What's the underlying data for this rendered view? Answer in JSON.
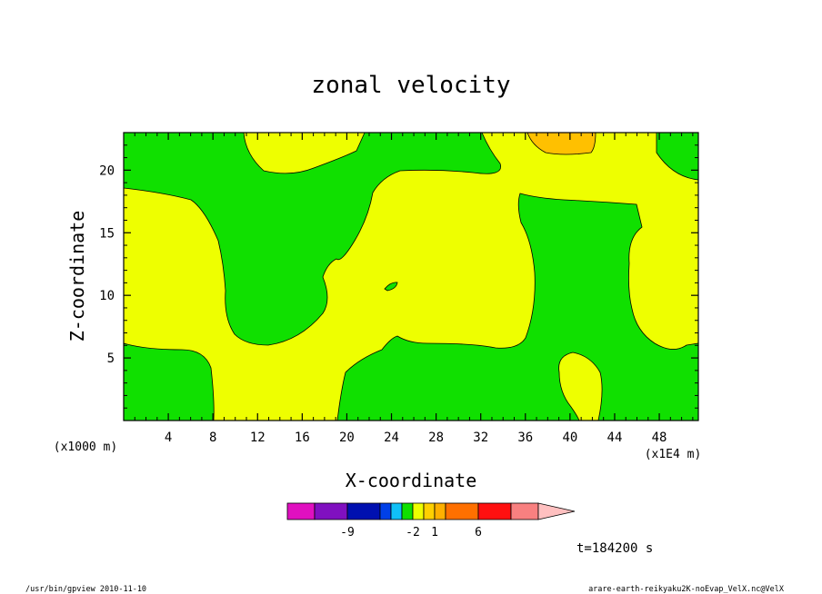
{
  "chart_data": {
    "type": "contour",
    "title": "zonal velocity",
    "xlabel": "X-coordinate",
    "ylabel": "Z-coordinate",
    "x_scale_label": "(x1E4 m)",
    "y_scale_label": "(x1000 m)",
    "xlim": [
      0,
      51.5
    ],
    "ylim": [
      0,
      23
    ],
    "x_ticks": [
      4,
      8,
      12,
      16,
      20,
      24,
      28,
      32,
      36,
      40,
      44,
      48
    ],
    "y_ticks": [
      5,
      10,
      15,
      20
    ],
    "time_label": "t=184200 s",
    "colorbar": {
      "tick_labels": [
        {
          "value": -9,
          "text": "-9"
        },
        {
          "value": -2,
          "text": "-2"
        },
        {
          "value": 1,
          "text": "1"
        },
        {
          "value": 6,
          "text": "6"
        }
      ],
      "bins": [
        {
          "color": "#e010c0"
        },
        {
          "color": "#8010c0"
        },
        {
          "color": "#0010b0"
        },
        {
          "color": "#0040e8"
        },
        {
          "color": "#10c0f8"
        },
        {
          "color": "#10e000"
        },
        {
          "color": "#eeff00"
        },
        {
          "color": "#ffd000"
        },
        {
          "color": "#ffb000"
        },
        {
          "color": "#ff7000"
        },
        {
          "color": "#ff1010"
        },
        {
          "color": "#f88080"
        }
      ],
      "extend_color": "#ffc0c0"
    },
    "region_colors": {
      "background": "#eeff00",
      "negative": "#10e000",
      "high": "#ffc000"
    }
  },
  "footer": {
    "left": "/usr/bin/gpview   2010-11-10",
    "right": "arare-earth-reikyaku2K-noEvap_VelX.nc@VelX"
  }
}
